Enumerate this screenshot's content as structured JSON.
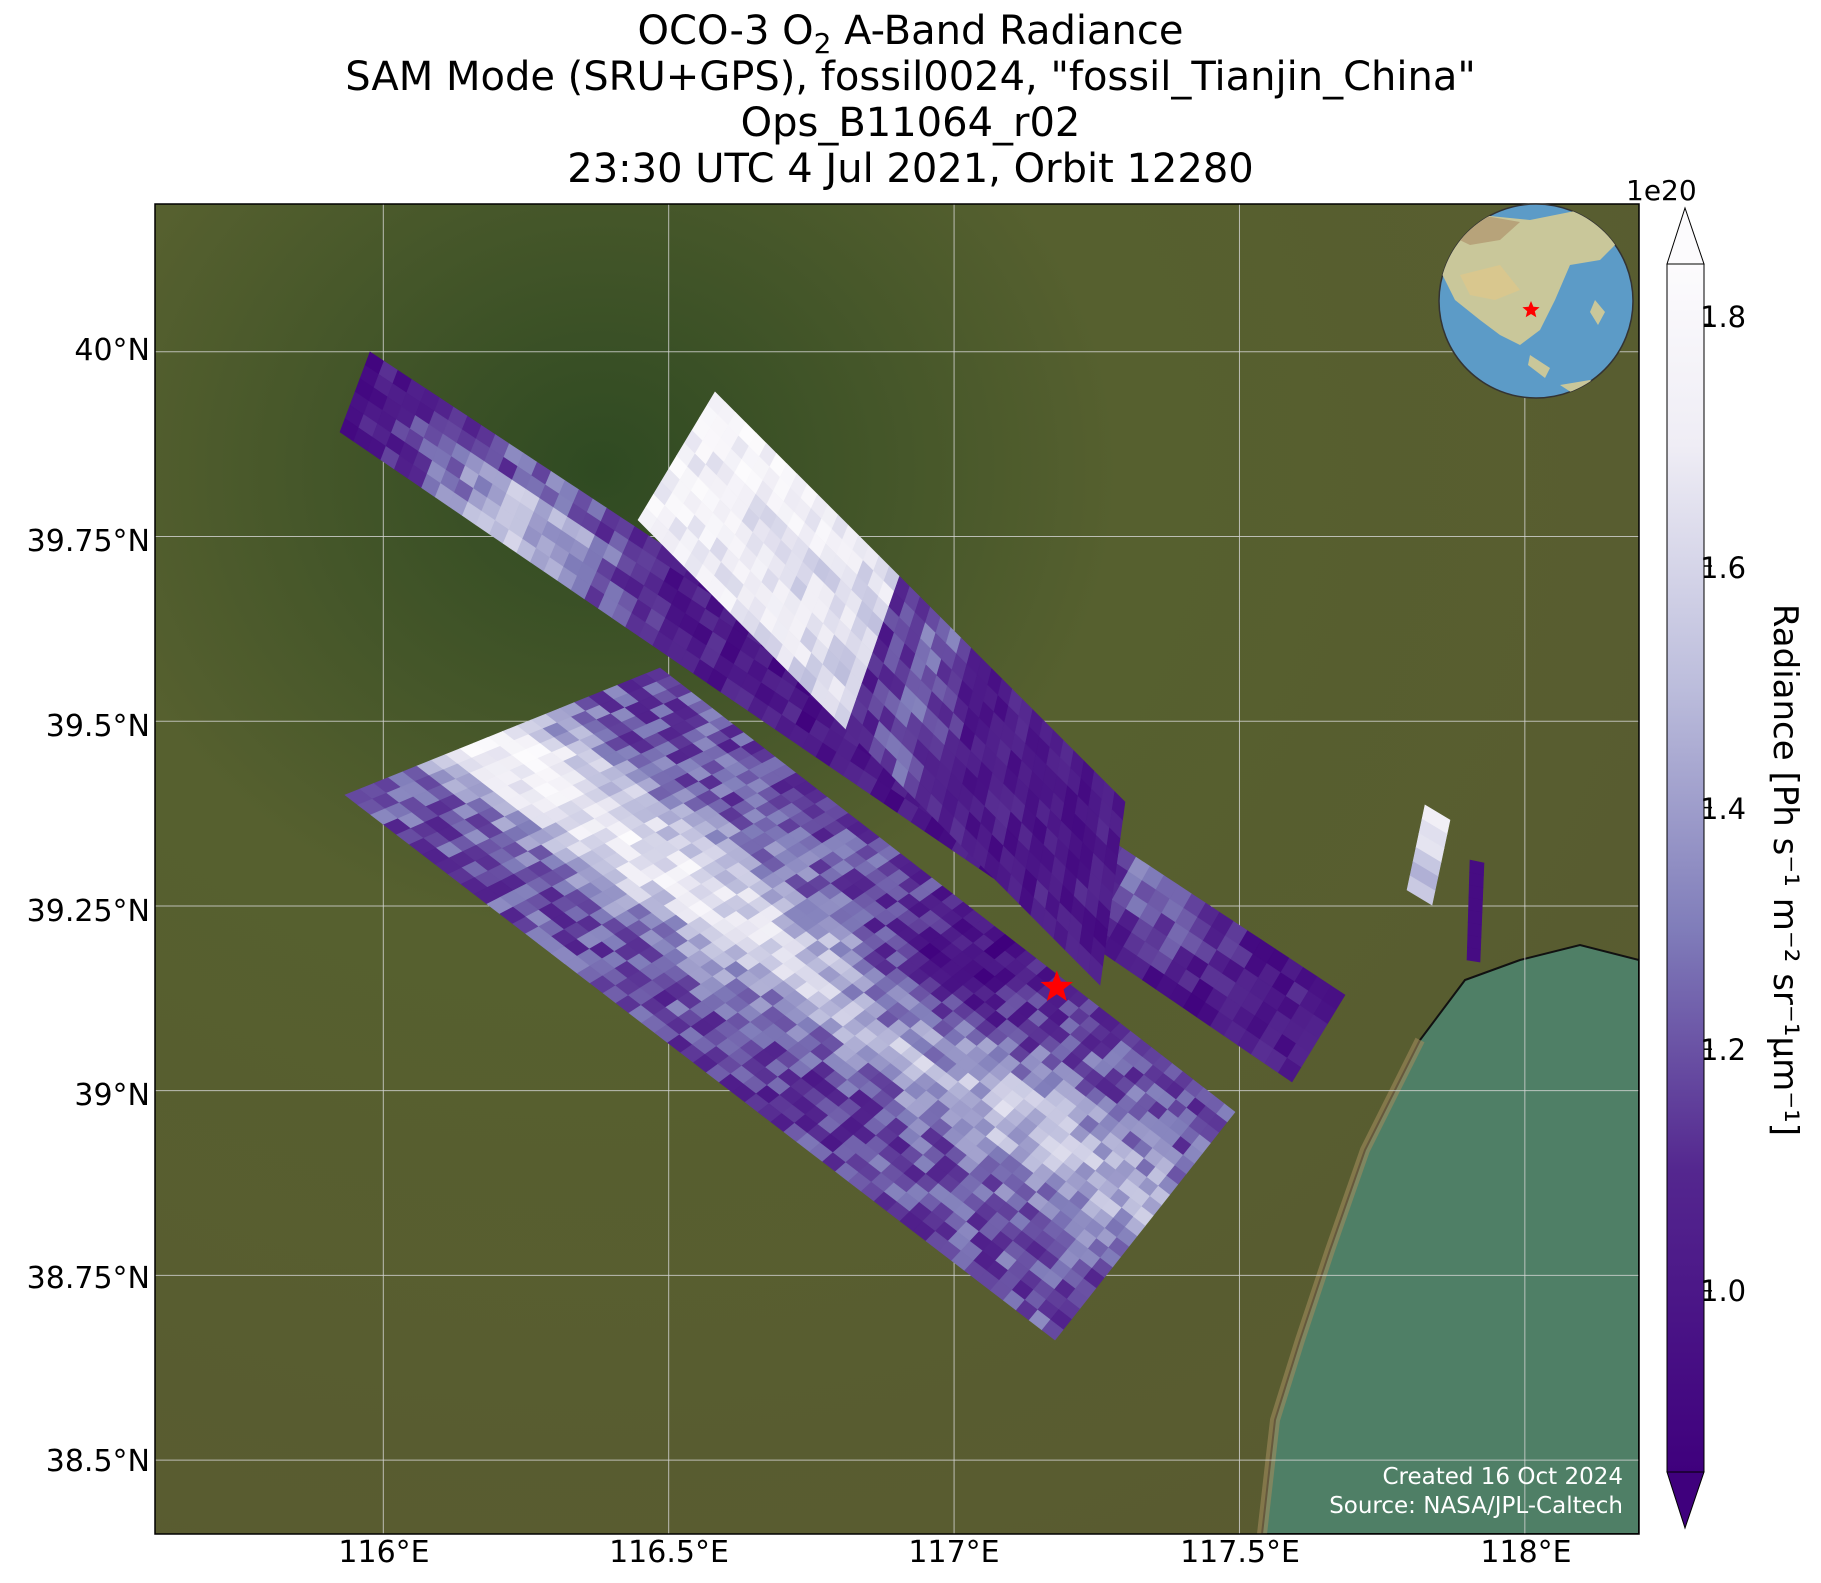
{
  "title": {
    "line1_prefix": "OCO-3 O",
    "line1_sub": "2",
    "line1_suffix": " A-Band Radiance",
    "line2": "SAM Mode (SRU+GPS), fossil0024, \"fossil_Tianjin_China\"",
    "line3": "Ops_B11064_r02",
    "line4": "23:30 UTC 4 Jul 2021, Orbit 12280"
  },
  "axes": {
    "lat_labels": [
      "40°N",
      "39.75°N",
      "39.5°N",
      "39.25°N",
      "39°N",
      "38.75°N",
      "38.5°N"
    ],
    "lon_labels": [
      "116°E",
      "116.5°E",
      "117°E",
      "117.5°E",
      "118°E"
    ],
    "lat_values": [
      40.0,
      39.75,
      39.5,
      39.25,
      39.0,
      38.75,
      38.5
    ],
    "lon_values": [
      116.0,
      116.5,
      117.0,
      117.5,
      118.0
    ],
    "lat_range": [
      38.4,
      40.2
    ],
    "lon_range": [
      115.6,
      118.2
    ]
  },
  "colorbar": {
    "exponent_label": "1e20",
    "tick_labels": [
      "1.0",
      "1.2",
      "1.4",
      "1.6",
      "1.8"
    ],
    "tick_values": [
      1.0,
      1.2,
      1.4,
      1.6,
      1.8
    ],
    "range": [
      0.85,
      1.85
    ],
    "label_prefix": "Radiance [Ph s",
    "label_full": "Radiance [Ph s⁻¹ m⁻² sr⁻¹μm⁻¹]",
    "colormap": "Purples_r",
    "low_color": "#3f007d",
    "high_color": "#fcfbfd",
    "extend": "both"
  },
  "target": {
    "name": "fossil_Tianjin_China",
    "lon": 117.18,
    "lat": 39.14,
    "marker": "red-star-icon",
    "color": "#ff0000"
  },
  "inset_globe": {
    "marker": "red-star-icon",
    "ocean_color": "#5c9bc7",
    "land_color": "#c9c79a"
  },
  "credits": {
    "created": "Created 16 Oct 2024",
    "source": "Source: NASA/JPL-Caltech"
  },
  "colors": {
    "background_land": "#4f5a2c",
    "sea": "#4f7f66",
    "grid": "#d0d0d0"
  }
}
